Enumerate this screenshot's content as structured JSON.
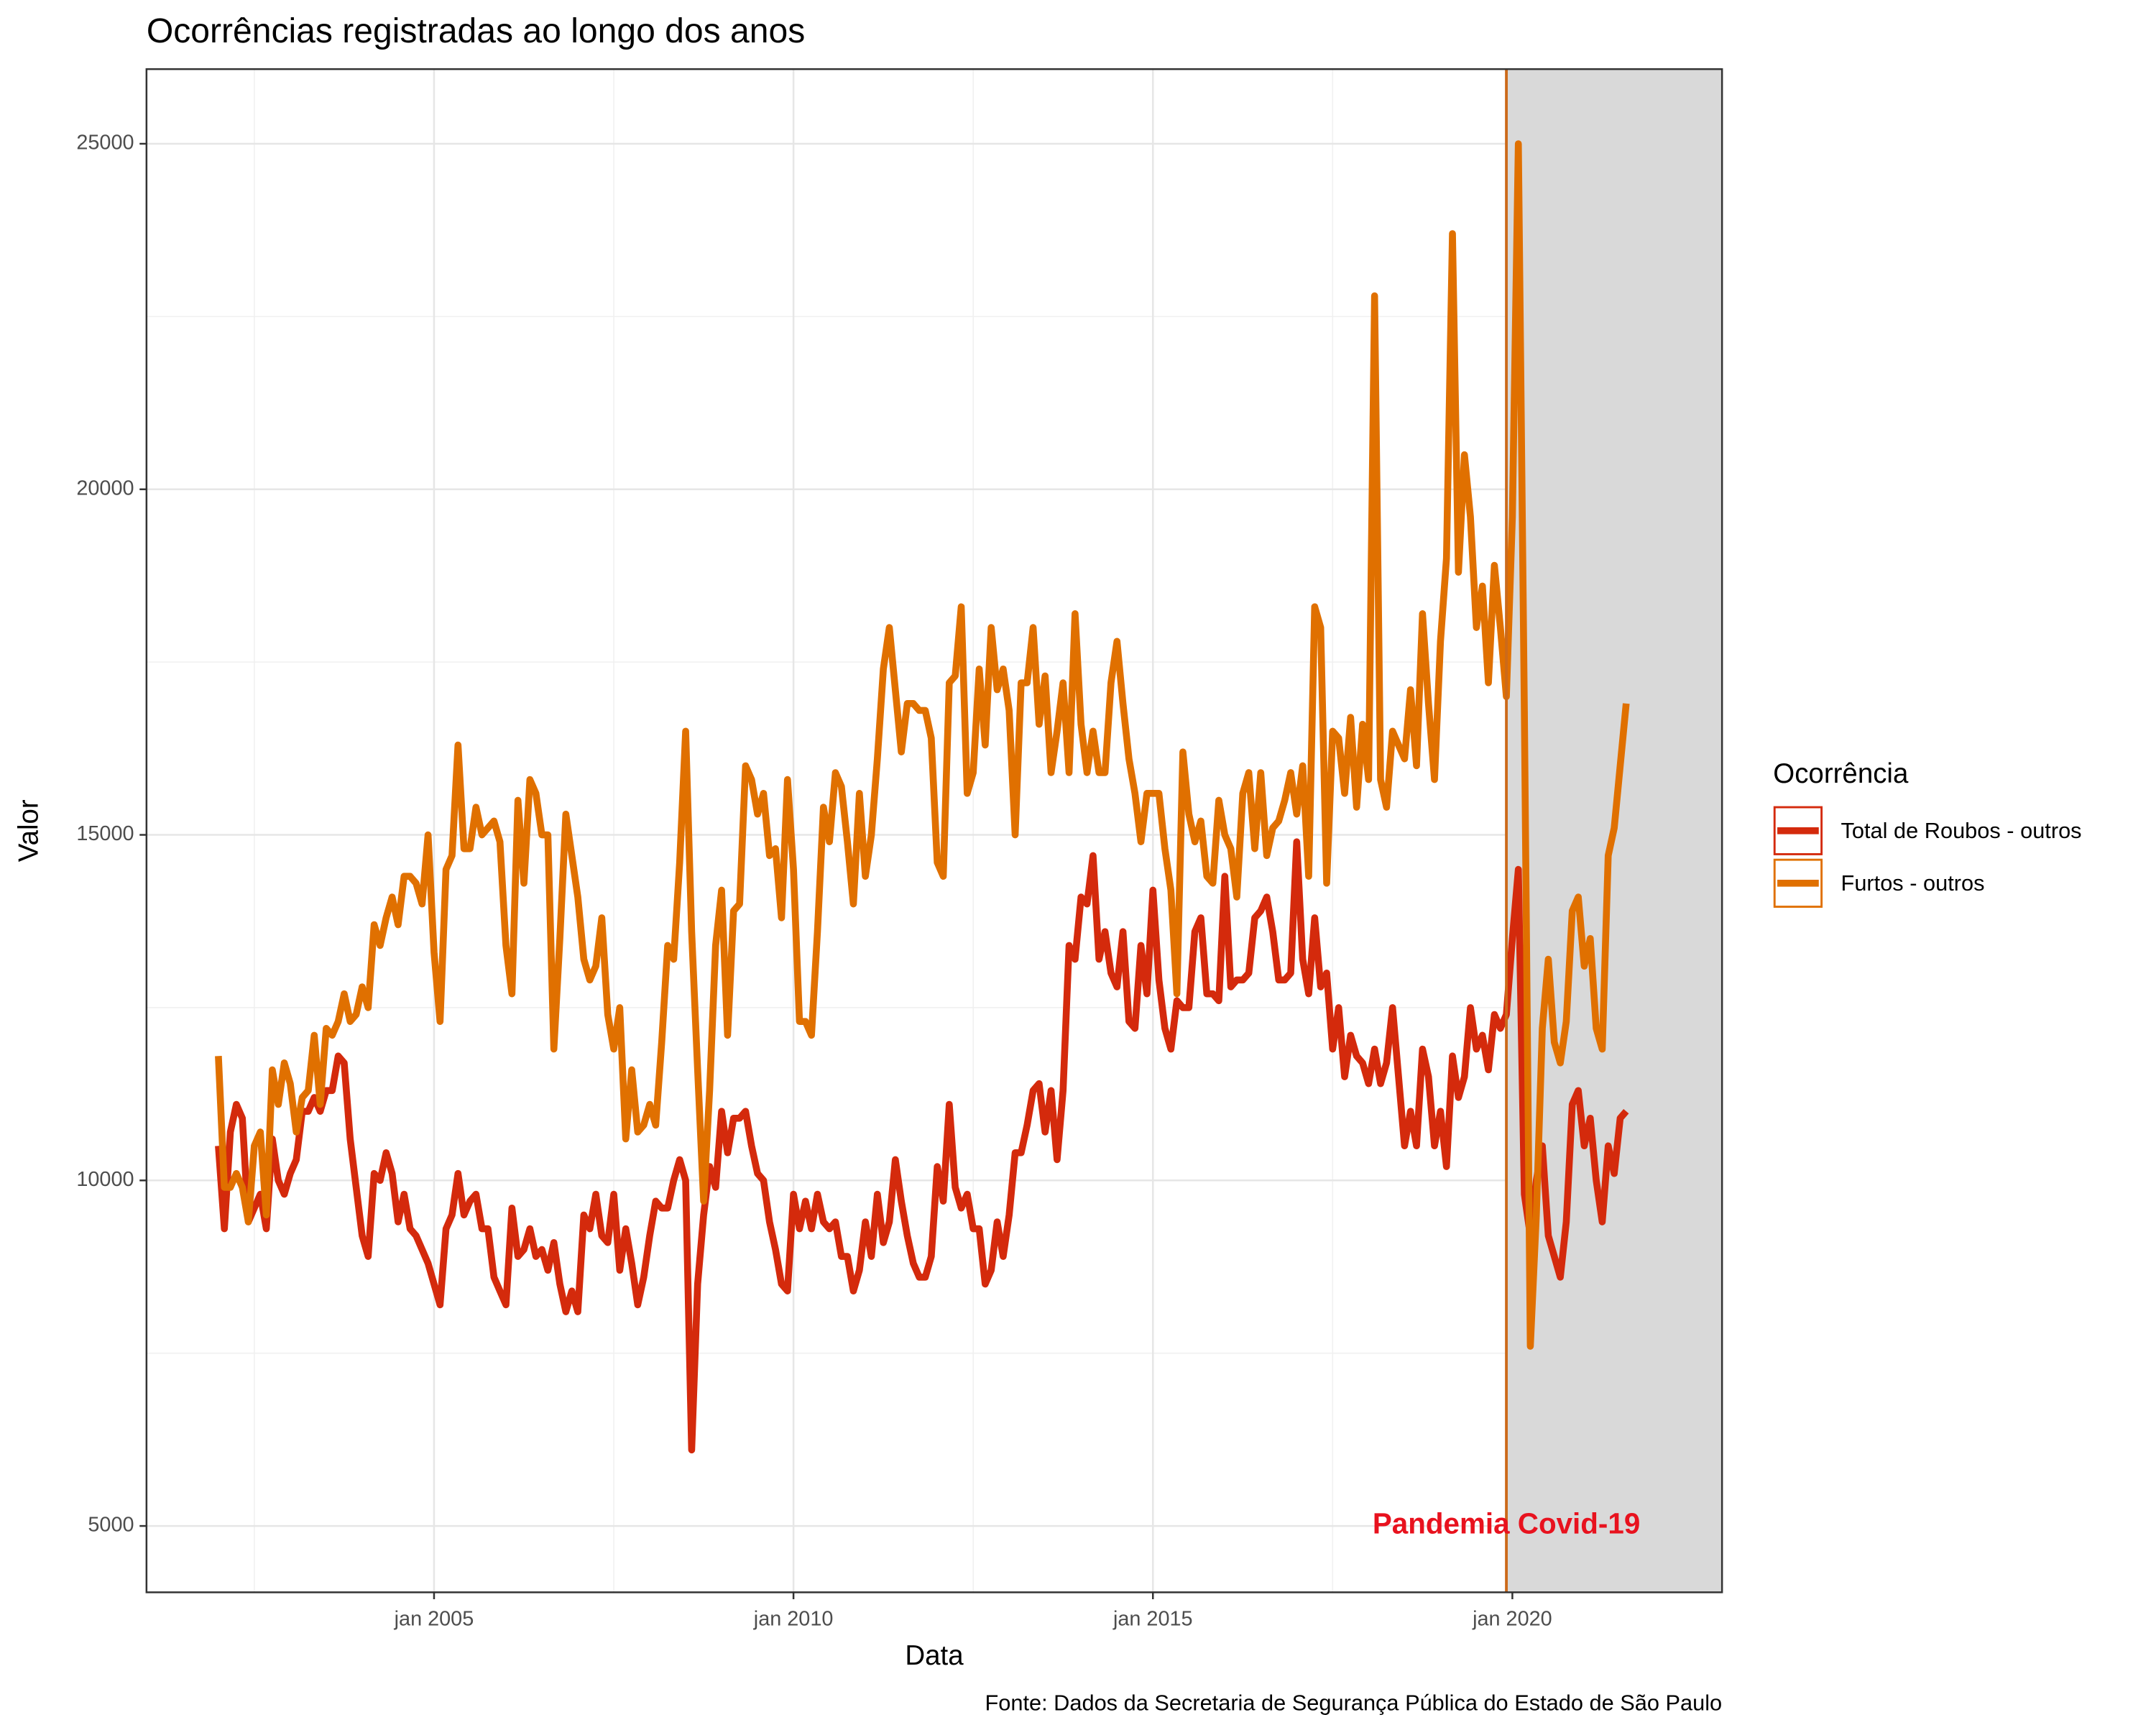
{
  "chart_data": {
    "type": "line",
    "title": "Ocorrências registradas ao longo dos anos",
    "x_label": "Data",
    "y_label": "Valor",
    "caption": "Fonte: Dados da Secretaria de Segurança Pública do Estado de São Paulo",
    "legend_title": "Ocorrência",
    "legend_position": "right",
    "grid": true,
    "xlim": [
      "2001-01",
      "2022-12"
    ],
    "ylim": [
      4040,
      26080
    ],
    "xticks": [
      {
        "value": "2005-01",
        "label": "jan 2005"
      },
      {
        "value": "2010-01",
        "label": "jan 2010"
      },
      {
        "value": "2015-01",
        "label": "jan 2015"
      },
      {
        "value": "2020-01",
        "label": "jan 2020"
      }
    ],
    "yticks": [
      5000,
      10000,
      15000,
      20000,
      25000
    ],
    "shading": {
      "start": "2019-12",
      "color": "#d9d9d9"
    },
    "vline": {
      "x": "2019-12",
      "color": "#cc6a1a"
    },
    "annotation": {
      "text": "Pandemia Covid-19",
      "x": "2019-12",
      "y": 5000,
      "color": "#e8121e"
    },
    "x": [
      "2002-01",
      "2002-02",
      "2002-03",
      "2002-04",
      "2002-05",
      "2002-06",
      "2002-07",
      "2002-08",
      "2002-09",
      "2002-10",
      "2002-11",
      "2002-12",
      "2003-01",
      "2003-02",
      "2003-03",
      "2003-04",
      "2003-05",
      "2003-06",
      "2003-07",
      "2003-08",
      "2003-09",
      "2003-10",
      "2003-11",
      "2003-12",
      "2004-01",
      "2004-02",
      "2004-03",
      "2004-04",
      "2004-05",
      "2004-06",
      "2004-07",
      "2004-08",
      "2004-09",
      "2004-10",
      "2004-11",
      "2004-12",
      "2005-01",
      "2005-02",
      "2005-03",
      "2005-04",
      "2005-05",
      "2005-06",
      "2005-07",
      "2005-08",
      "2005-09",
      "2005-10",
      "2005-11",
      "2005-12",
      "2006-01",
      "2006-02",
      "2006-03",
      "2006-04",
      "2006-05",
      "2006-06",
      "2006-07",
      "2006-08",
      "2006-09",
      "2006-10",
      "2006-11",
      "2006-12",
      "2007-01",
      "2007-02",
      "2007-03",
      "2007-04",
      "2007-05",
      "2007-06",
      "2007-07",
      "2007-08",
      "2007-09",
      "2007-10",
      "2007-11",
      "2007-12",
      "2008-01",
      "2008-02",
      "2008-03",
      "2008-04",
      "2008-05",
      "2008-06",
      "2008-07",
      "2008-08",
      "2008-09",
      "2008-10",
      "2008-11",
      "2008-12",
      "2009-01",
      "2009-02",
      "2009-03",
      "2009-04",
      "2009-05",
      "2009-06",
      "2009-07",
      "2009-08",
      "2009-09",
      "2009-10",
      "2009-11",
      "2009-12",
      "2010-01",
      "2010-02",
      "2010-03",
      "2010-04",
      "2010-05",
      "2010-06",
      "2010-07",
      "2010-08",
      "2010-09",
      "2010-10",
      "2010-11",
      "2010-12",
      "2011-01",
      "2011-02",
      "2011-03",
      "2011-04",
      "2011-05",
      "2011-06",
      "2011-07",
      "2011-08",
      "2011-09",
      "2011-10",
      "2011-11",
      "2011-12",
      "2012-01",
      "2012-02",
      "2012-03",
      "2012-04",
      "2012-05",
      "2012-06",
      "2012-07",
      "2012-08",
      "2012-09",
      "2012-10",
      "2012-11",
      "2012-12",
      "2013-01",
      "2013-02",
      "2013-03",
      "2013-04",
      "2013-05",
      "2013-06",
      "2013-07",
      "2013-08",
      "2013-09",
      "2013-10",
      "2013-11",
      "2013-12",
      "2014-01",
      "2014-02",
      "2014-03",
      "2014-04",
      "2014-05",
      "2014-06",
      "2014-07",
      "2014-08",
      "2014-09",
      "2014-10",
      "2014-11",
      "2014-12",
      "2015-01",
      "2015-02",
      "2015-03",
      "2015-04",
      "2015-05",
      "2015-06",
      "2015-07",
      "2015-08",
      "2015-09",
      "2015-10",
      "2015-11",
      "2015-12",
      "2016-01",
      "2016-02",
      "2016-03",
      "2016-04",
      "2016-05",
      "2016-06",
      "2016-07",
      "2016-08",
      "2016-09",
      "2016-10",
      "2016-11",
      "2016-12",
      "2017-01",
      "2017-02",
      "2017-03",
      "2017-04",
      "2017-05",
      "2017-06",
      "2017-07",
      "2017-08",
      "2017-09",
      "2017-10",
      "2017-11",
      "2017-12",
      "2018-01",
      "2018-02",
      "2018-03",
      "2018-04",
      "2018-05",
      "2018-06",
      "2018-07",
      "2018-08",
      "2018-09",
      "2018-10",
      "2018-11",
      "2018-12",
      "2019-01",
      "2019-02",
      "2019-03",
      "2019-04",
      "2019-05",
      "2019-06",
      "2019-07",
      "2019-08",
      "2019-09",
      "2019-10",
      "2019-11",
      "2019-12",
      "2020-01",
      "2020-02",
      "2020-03",
      "2020-04",
      "2020-05",
      "2020-06",
      "2020-07",
      "2020-08",
      "2020-09",
      "2020-10",
      "2020-11",
      "2020-12",
      "2021-01",
      "2021-02",
      "2021-03",
      "2021-04",
      "2021-05",
      "2021-06",
      "2021-07",
      "2021-08"
    ],
    "series": [
      {
        "name": "Total de Roubos - outros",
        "color": "#d42a0c",
        "values": [
          10500,
          9300,
          10700,
          11100,
          10900,
          9400,
          9600,
          9800,
          9300,
          10600,
          10000,
          9800,
          10100,
          10300,
          11000,
          11000,
          11200,
          11000,
          11300,
          11300,
          11800,
          11700,
          10600,
          9900,
          9200,
          8900,
          10100,
          10000,
          10400,
          10100,
          9400,
          9800,
          9300,
          9200,
          9000,
          8800,
          8500,
          8200,
          9300,
          9500,
          10100,
          9500,
          9700,
          9800,
          9300,
          9300,
          8600,
          8400,
          8200,
          9600,
          8900,
          9000,
          9300,
          8900,
          9000,
          8700,
          9100,
          8500,
          8100,
          8400,
          8100,
          9500,
          9300,
          9800,
          9200,
          9100,
          9800,
          8700,
          9300,
          8800,
          8200,
          8600,
          9200,
          9700,
          9600,
          9600,
          10000,
          10300,
          10000,
          6100,
          8500,
          9500,
          10200,
          9900,
          11000,
          10400,
          10900,
          10900,
          11000,
          10500,
          10100,
          10000,
          9400,
          9000,
          8500,
          8400,
          9800,
          9300,
          9700,
          9300,
          9800,
          9400,
          9300,
          9400,
          8900,
          8900,
          8400,
          8700,
          9400,
          8900,
          9800,
          9100,
          9400,
          10300,
          9700,
          9200,
          8800,
          8600,
          8600,
          8900,
          10200,
          9700,
          11100,
          9900,
          9600,
          9800,
          9300,
          9300,
          8500,
          8700,
          9400,
          8900,
          9500,
          10400,
          10400,
          10800,
          11300,
          11400,
          10700,
          11300,
          10300,
          11300,
          13400,
          13200,
          14100,
          14000,
          14700,
          13200,
          13600,
          13000,
          12800,
          13600,
          12300,
          12200,
          13400,
          12700,
          14200,
          12900,
          12200,
          11900,
          12600,
          12500,
          12500,
          13600,
          13800,
          12700,
          12700,
          12600,
          14400,
          12800,
          12900,
          12900,
          13000,
          13800,
          13900,
          14100,
          13600,
          12900,
          12900,
          13000,
          14900,
          13200,
          12700,
          13800,
          12800,
          13000,
          11900,
          12500,
          11500,
          12100,
          11800,
          11700,
          11400,
          11900,
          11400,
          11700,
          12500,
          11500,
          10500,
          11000,
          10500,
          11900,
          11500,
          10500,
          11000,
          10200,
          11800,
          11200,
          11500,
          12500,
          11900,
          12100,
          11600,
          12400,
          12200,
          12400,
          13500,
          14500,
          9800,
          9200,
          10000,
          10500,
          9200,
          8900,
          8600,
          9400,
          11100,
          11300,
          10500,
          10900,
          10000,
          9400,
          10500,
          10100,
          10900,
          11000
        ]
      },
      {
        "name": "Furtos - outros",
        "color": "#e07000",
        "values": [
          11800,
          9900,
          9900,
          10100,
          9900,
          9400,
          10500,
          10700,
          9500,
          11600,
          11100,
          11700,
          11400,
          10700,
          11200,
          11300,
          12100,
          11100,
          12200,
          12100,
          12300,
          12700,
          12300,
          12400,
          12800,
          12500,
          13700,
          13400,
          13800,
          14100,
          13700,
          14400,
          14400,
          14300,
          14000,
          15000,
          13300,
          12300,
          14500,
          14700,
          16300,
          14800,
          14800,
          15400,
          15000,
          15100,
          15200,
          14900,
          13400,
          12700,
          15500,
          14300,
          15800,
          15600,
          15000,
          15000,
          11900,
          13500,
          15300,
          14700,
          14100,
          13200,
          12900,
          13100,
          13800,
          12400,
          11900,
          12500,
          10600,
          11600,
          10700,
          10800,
          11100,
          10800,
          12000,
          13400,
          13200,
          14600,
          16500,
          13600,
          11600,
          9700,
          11300,
          13400,
          14200,
          12100,
          13900,
          14000,
          16000,
          15800,
          15300,
          15600,
          14700,
          14800,
          13800,
          15800,
          14500,
          12300,
          12300,
          12100,
          13600,
          15400,
          14900,
          15900,
          15700,
          14900,
          14000,
          15600,
          14400,
          15000,
          16100,
          17400,
          18000,
          17100,
          16200,
          16900,
          16900,
          16800,
          16800,
          16400,
          14600,
          14400,
          17200,
          17300,
          18300,
          15600,
          15900,
          17400,
          16300,
          18000,
          17100,
          17400,
          16800,
          15000,
          17200,
          17200,
          18000,
          16600,
          17300,
          15900,
          16500,
          17200,
          15900,
          18200,
          16600,
          15900,
          16500,
          15900,
          15900,
          17200,
          17800,
          16900,
          16100,
          15600,
          14900,
          15600,
          15600,
          15600,
          14800,
          14200,
          12700,
          16200,
          15300,
          14900,
          15200,
          14400,
          14300,
          15500,
          15000,
          14800,
          14100,
          15600,
          15900,
          14800,
          15900,
          14700,
          15100,
          15200,
          15500,
          15900,
          15300,
          16000,
          14400,
          18300,
          18000,
          14300,
          16500,
          16400,
          15600,
          16700,
          15400,
          16600,
          15800,
          22800,
          15800,
          15400,
          16500,
          16300,
          16100,
          17100,
          16000,
          18200,
          16900,
          15800,
          17800,
          19000,
          23700,
          18800,
          20500,
          19600,
          18000,
          18600,
          17200,
          18900,
          18000,
          17000,
          19600,
          25000,
          16800,
          7600,
          9500,
          12200,
          13200,
          12000,
          11700,
          12300,
          13900,
          14100,
          13100,
          13500,
          12200,
          11900,
          14700,
          15100,
          16000,
          16900
        ]
      }
    ]
  }
}
